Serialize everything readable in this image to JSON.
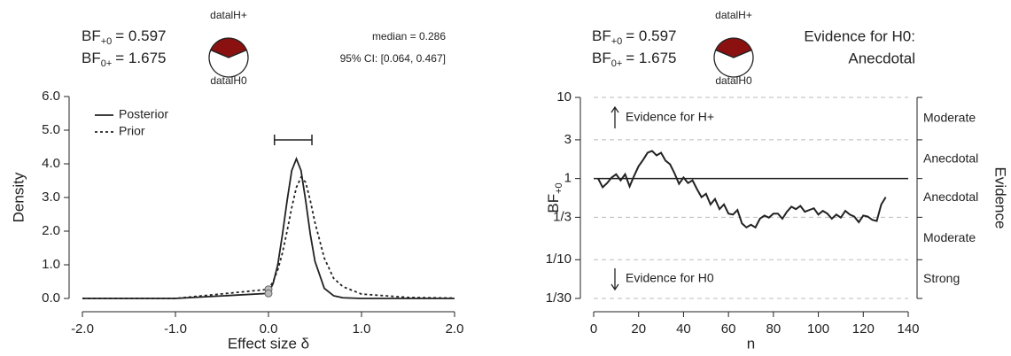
{
  "chart_data": [
    {
      "type": "line",
      "header": [
        {
          "label": "BF",
          "sub": "+0",
          "value": "= 0.597"
        },
        {
          "label": "BF",
          "sub": "0+",
          "value": "= 1.675"
        }
      ],
      "pie": {
        "labels": [
          "datalH+",
          "datalH0"
        ],
        "values": [
          37.4,
          62.6
        ],
        "colors": [
          "#8b1111",
          "#ffffff"
        ]
      },
      "median": "median = 0.286",
      "ci": {
        "label": "95% CI: [0.064, 0.467]",
        "lower": 0.064,
        "upper": 0.467
      },
      "xlabel": "Effect size δ",
      "ylabel": "Density",
      "x": [
        -2,
        -1,
        0,
        0.05,
        0.1,
        0.15,
        0.2,
        0.25,
        0.3,
        0.35,
        0.4,
        0.45,
        0.5,
        0.6,
        0.7,
        0.8,
        1.0,
        1.5,
        2.0
      ],
      "series": [
        {
          "name": "Posterior",
          "color": "#222222",
          "dash": "solid",
          "values": [
            0,
            0,
            0.15,
            0.45,
            1.0,
            1.9,
            2.9,
            3.8,
            4.15,
            3.8,
            2.9,
            1.9,
            1.1,
            0.3,
            0.08,
            0.02,
            0,
            0,
            0
          ]
        },
        {
          "name": "Prior",
          "color": "#222222",
          "dash": "dotted",
          "values": [
            0,
            0,
            0.27,
            0.5,
            0.85,
            1.35,
            2.0,
            2.7,
            3.3,
            3.6,
            3.45,
            2.9,
            2.25,
            1.2,
            0.6,
            0.35,
            0.13,
            0.03,
            0.01
          ]
        }
      ],
      "points": {
        "x": [
          0,
          0
        ],
        "values": [
          0.27,
          0.15
        ],
        "color": "#bbbbbb"
      },
      "xlim": [
        -2,
        2
      ],
      "xticks": [
        {
          "value": -2,
          "label": "-2.0"
        },
        {
          "value": -1,
          "label": "-1.0"
        },
        {
          "value": 0,
          "label": "0.0"
        },
        {
          "value": 1,
          "label": "1.0"
        },
        {
          "value": 2,
          "label": "2.0"
        }
      ],
      "ylim": [
        0,
        6
      ],
      "yticks": [
        {
          "value": 0,
          "label": "0.0"
        },
        {
          "value": 1,
          "label": "1.0"
        },
        {
          "value": 2,
          "label": "2.0"
        },
        {
          "value": 3,
          "label": "3.0"
        },
        {
          "value": 4,
          "label": "4.0"
        },
        {
          "value": 5,
          "label": "5.0"
        },
        {
          "value": 6,
          "label": "6.0"
        }
      ],
      "legend": "top-left"
    },
    {
      "type": "line",
      "log_y": true,
      "grid": true,
      "header": [
        {
          "label": "BF",
          "sub": "+0",
          "value": "= 0.597"
        },
        {
          "label": "BF",
          "sub": "0+",
          "value": "= 1.675"
        }
      ],
      "pie": {
        "labels": [
          "datalH+",
          "datalH0"
        ],
        "values": [
          37.4,
          62.6
        ],
        "colors": [
          "#8b1111",
          "#ffffff"
        ]
      },
      "evidence": [
        "Evidence for H0:",
        "Anecdotal"
      ],
      "xlabel": "n",
      "ylabel": {
        "label": "BF",
        "sub": "+0"
      },
      "y2label": "Evidence",
      "annotations": [
        "Evidence for H+",
        "Evidence for H0"
      ],
      "evidence_labels": [
        "Strong",
        "Moderate",
        "Anecdotal",
        "Anecdotal",
        "Moderate"
      ],
      "reference_line": 1,
      "color": "#222222",
      "x": [
        2,
        4,
        6,
        8,
        10,
        12,
        14,
        16,
        18,
        20,
        22,
        24,
        26,
        28,
        30,
        32,
        34,
        36,
        38,
        40,
        42,
        44,
        46,
        48,
        50,
        52,
        54,
        56,
        58,
        60,
        62,
        64,
        66,
        68,
        70,
        72,
        74,
        76,
        78,
        80,
        82,
        84,
        86,
        88,
        90,
        92,
        94,
        96,
        98,
        100,
        102,
        104,
        106,
        108,
        110,
        112,
        114,
        116,
        118,
        120,
        122,
        124,
        126,
        128,
        130
      ],
      "values": [
        1,
        0.78,
        0.88,
        1.03,
        1.13,
        0.95,
        1.13,
        0.8,
        1.08,
        1.42,
        1.7,
        2.08,
        2.19,
        1.93,
        2.08,
        1.66,
        1.5,
        1.16,
        0.86,
        1.03,
        0.88,
        0.95,
        0.74,
        0.59,
        0.65,
        0.48,
        0.56,
        0.42,
        0.48,
        0.37,
        0.36,
        0.41,
        0.28,
        0.25,
        0.27,
        0.25,
        0.32,
        0.35,
        0.33,
        0.37,
        0.37,
        0.32,
        0.39,
        0.45,
        0.42,
        0.46,
        0.39,
        0.41,
        0.43,
        0.36,
        0.4,
        0.37,
        0.32,
        0.36,
        0.33,
        0.4,
        0.36,
        0.34,
        0.29,
        0.35,
        0.34,
        0.31,
        0.3,
        0.48,
        0.59
      ],
      "xlim": [
        0,
        140
      ],
      "xticks": [
        0,
        20,
        40,
        60,
        80,
        100,
        120,
        140
      ],
      "ylim": [
        0.0333333,
        10
      ],
      "yticks": [
        {
          "value": 0.0333333,
          "label": "1/30"
        },
        {
          "value": 0.1,
          "label": "1/10"
        },
        {
          "value": 0.333333,
          "label": "1/3"
        },
        1,
        3,
        10
      ]
    }
  ]
}
